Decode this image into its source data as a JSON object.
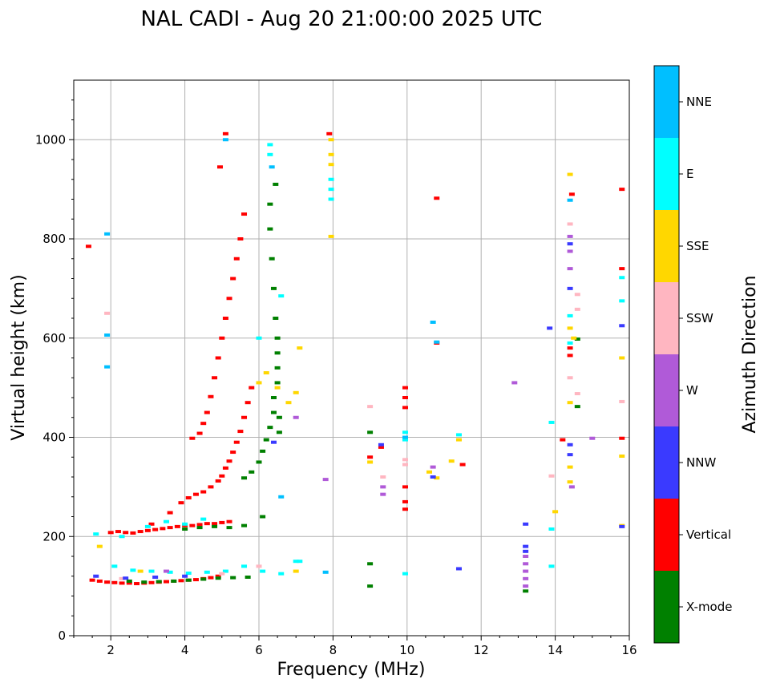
{
  "chart_data": {
    "type": "scatter",
    "title": "NAL CADI - Aug 20 21:00:00 2025 UTC",
    "xlabel": "Frequency (MHz)",
    "ylabel": "Virtual height (km)",
    "xlim": [
      1,
      16
    ],
    "ylim": [
      0,
      1120
    ],
    "xticks": [
      2,
      4,
      6,
      8,
      10,
      12,
      14,
      16
    ],
    "yticks": [
      0,
      200,
      400,
      600,
      800,
      1000
    ],
    "grid": true,
    "colorbar": {
      "label": "Azimuth Direction",
      "categories": [
        {
          "name": "X-mode",
          "color": "#008000"
        },
        {
          "name": "Vertical",
          "color": "#ff0000"
        },
        {
          "name": "NNW",
          "color": "#3a3aff"
        },
        {
          "name": "W",
          "color": "#b05ad8"
        },
        {
          "name": "SSW",
          "color": "#ffb6c1"
        },
        {
          "name": "SSE",
          "color": "#ffd700"
        },
        {
          "name": "E",
          "color": "#00ffff"
        },
        {
          "name": "NNE",
          "color": "#00bfff"
        }
      ]
    },
    "series": [
      {
        "name": "Vertical",
        "points": [
          [
            1.5,
            112
          ],
          [
            1.7,
            110
          ],
          [
            1.9,
            108
          ],
          [
            2.1,
            107
          ],
          [
            2.3,
            106
          ],
          [
            2.5,
            106
          ],
          [
            2.7,
            105
          ],
          [
            2.9,
            106
          ],
          [
            3.1,
            107
          ],
          [
            3.3,
            108
          ],
          [
            3.5,
            109
          ],
          [
            3.7,
            110
          ],
          [
            3.9,
            111
          ],
          [
            4.1,
            112
          ],
          [
            4.3,
            113
          ],
          [
            4.5,
            115
          ],
          [
            4.7,
            117
          ],
          [
            4.9,
            120
          ],
          [
            2.0,
            208
          ],
          [
            2.2,
            210
          ],
          [
            2.4,
            208
          ],
          [
            2.6,
            207
          ],
          [
            2.8,
            210
          ],
          [
            3.0,
            212
          ],
          [
            3.2,
            214
          ],
          [
            3.4,
            216
          ],
          [
            3.6,
            218
          ],
          [
            3.8,
            220
          ],
          [
            4.0,
            222
          ],
          [
            4.2,
            222
          ],
          [
            4.4,
            224
          ],
          [
            4.6,
            226
          ],
          [
            4.8,
            226
          ],
          [
            5.0,
            228
          ],
          [
            5.2,
            230
          ],
          [
            3.1,
            225
          ],
          [
            3.6,
            248
          ],
          [
            3.9,
            268
          ],
          [
            4.1,
            278
          ],
          [
            4.3,
            285
          ],
          [
            4.5,
            290
          ],
          [
            4.7,
            300
          ],
          [
            4.9,
            312
          ],
          [
            5.0,
            322
          ],
          [
            5.1,
            338
          ],
          [
            5.2,
            352
          ],
          [
            5.3,
            370
          ],
          [
            5.4,
            390
          ],
          [
            5.5,
            412
          ],
          [
            5.6,
            440
          ],
          [
            5.7,
            470
          ],
          [
            5.8,
            500
          ],
          [
            4.2,
            398
          ],
          [
            4.4,
            408
          ],
          [
            4.5,
            428
          ],
          [
            4.6,
            450
          ],
          [
            4.7,
            482
          ],
          [
            4.8,
            520
          ],
          [
            4.9,
            560
          ],
          [
            5.0,
            600
          ],
          [
            5.1,
            640
          ],
          [
            5.2,
            680
          ],
          [
            5.3,
            720
          ],
          [
            5.4,
            760
          ],
          [
            5.5,
            800
          ],
          [
            5.6,
            850
          ],
          [
            4.95,
            945
          ],
          [
            5.1,
            1012
          ],
          [
            1.4,
            785
          ],
          [
            9.0,
            360
          ],
          [
            9.3,
            380
          ],
          [
            9.95,
            500
          ],
          [
            9.95,
            480
          ],
          [
            9.95,
            460
          ],
          [
            9.95,
            300
          ],
          [
            9.95,
            270
          ],
          [
            9.95,
            255
          ],
          [
            10.8,
            882
          ],
          [
            10.8,
            590
          ],
          [
            11.5,
            345
          ],
          [
            14.2,
            395
          ],
          [
            14.45,
            890
          ],
          [
            14.4,
            580
          ],
          [
            14.4,
            565
          ],
          [
            15.8,
            900
          ],
          [
            15.8,
            740
          ],
          [
            15.8,
            398
          ],
          [
            7.9,
            1012
          ]
        ]
      },
      {
        "name": "X-mode",
        "points": [
          [
            2.5,
            110
          ],
          [
            2.9,
            108
          ],
          [
            3.3,
            109
          ],
          [
            3.7,
            110
          ],
          [
            4.1,
            112
          ],
          [
            4.5,
            114
          ],
          [
            4.9,
            116
          ],
          [
            5.3,
            117
          ],
          [
            5.7,
            118
          ],
          [
            4.0,
            215
          ],
          [
            4.4,
            218
          ],
          [
            4.8,
            220
          ],
          [
            5.2,
            218
          ],
          [
            5.6,
            222
          ],
          [
            5.6,
            318
          ],
          [
            5.8,
            330
          ],
          [
            6.0,
            350
          ],
          [
            6.1,
            372
          ],
          [
            6.2,
            395
          ],
          [
            6.3,
            420
          ],
          [
            6.4,
            450
          ],
          [
            6.4,
            480
          ],
          [
            6.5,
            510
          ],
          [
            6.5,
            540
          ],
          [
            6.5,
            570
          ],
          [
            6.5,
            600
          ],
          [
            6.45,
            640
          ],
          [
            6.4,
            700
          ],
          [
            6.35,
            760
          ],
          [
            6.3,
            820
          ],
          [
            6.3,
            870
          ],
          [
            6.45,
            910
          ],
          [
            6.1,
            240
          ],
          [
            6.55,
            410
          ],
          [
            6.55,
            440
          ],
          [
            9.0,
            410
          ],
          [
            9.0,
            145
          ],
          [
            9.0,
            100
          ],
          [
            14.6,
            462
          ],
          [
            14.6,
            598
          ],
          [
            13.2,
            90
          ]
        ]
      },
      {
        "name": "E",
        "points": [
          [
            1.6,
            205
          ],
          [
            2.1,
            140
          ],
          [
            2.6,
            132
          ],
          [
            3.1,
            130
          ],
          [
            3.6,
            128
          ],
          [
            4.1,
            126
          ],
          [
            4.6,
            128
          ],
          [
            5.1,
            130
          ],
          [
            5.6,
            140
          ],
          [
            6.1,
            130
          ],
          [
            6.6,
            125
          ],
          [
            7.0,
            150
          ],
          [
            3.0,
            220
          ],
          [
            3.5,
            230
          ],
          [
            4.0,
            225
          ],
          [
            4.5,
            235
          ],
          [
            6.3,
            990
          ],
          [
            6.3,
            970
          ],
          [
            6.6,
            685
          ],
          [
            6.0,
            600
          ],
          [
            7.95,
            920
          ],
          [
            7.95,
            900
          ],
          [
            7.95,
            880
          ],
          [
            9.95,
            410
          ],
          [
            9.95,
            395
          ],
          [
            9.95,
            125
          ],
          [
            11.4,
            405
          ],
          [
            14.4,
            645
          ],
          [
            14.4,
            590
          ],
          [
            13.9,
            430
          ],
          [
            13.9,
            215
          ],
          [
            13.9,
            140
          ],
          [
            15.8,
            722
          ],
          [
            15.8,
            675
          ],
          [
            7.1,
            150
          ],
          [
            2.3,
            200
          ]
        ]
      },
      {
        "name": "NNE",
        "points": [
          [
            1.9,
            810
          ],
          [
            1.9,
            606
          ],
          [
            1.9,
            542
          ],
          [
            5.1,
            1000
          ],
          [
            6.35,
            945
          ],
          [
            7.8,
            128
          ],
          [
            9.95,
            400
          ],
          [
            10.7,
            632
          ],
          [
            10.8,
            592
          ],
          [
            14.4,
            878
          ],
          [
            6.6,
            280
          ]
        ]
      },
      {
        "name": "SSE",
        "points": [
          [
            6.0,
            510
          ],
          [
            6.2,
            530
          ],
          [
            6.5,
            500
          ],
          [
            6.8,
            470
          ],
          [
            7.0,
            490
          ],
          [
            7.1,
            580
          ],
          [
            7.95,
            1000
          ],
          [
            7.95,
            970
          ],
          [
            7.95,
            950
          ],
          [
            7.95,
            805
          ],
          [
            9.0,
            350
          ],
          [
            10.6,
            330
          ],
          [
            10.8,
            318
          ],
          [
            11.2,
            352
          ],
          [
            11.4,
            395
          ],
          [
            14.4,
            930
          ],
          [
            14.4,
            620
          ],
          [
            14.5,
            600
          ],
          [
            14.4,
            470
          ],
          [
            14.4,
            340
          ],
          [
            14.4,
            310
          ],
          [
            14.0,
            250
          ],
          [
            15.8,
            560
          ],
          [
            15.8,
            362
          ],
          [
            15.8,
            222
          ],
          [
            1.7,
            180
          ],
          [
            2.8,
            130
          ],
          [
            7.0,
            130
          ]
        ]
      },
      {
        "name": "SSW",
        "points": [
          [
            9.0,
            462
          ],
          [
            9.95,
            355
          ],
          [
            9.95,
            345
          ],
          [
            9.35,
            320
          ],
          [
            14.6,
            658
          ],
          [
            14.6,
            688
          ],
          [
            14.6,
            488
          ],
          [
            14.4,
            520
          ],
          [
            14.4,
            830
          ],
          [
            13.9,
            322
          ],
          [
            15.8,
            472
          ],
          [
            2.3,
            115
          ],
          [
            5.0,
            125
          ],
          [
            6.0,
            140
          ],
          [
            1.9,
            650
          ]
        ]
      },
      {
        "name": "W",
        "points": [
          [
            7.8,
            315
          ],
          [
            9.35,
            300
          ],
          [
            9.35,
            285
          ],
          [
            10.7,
            340
          ],
          [
            12.9,
            510
          ],
          [
            13.2,
            160
          ],
          [
            13.2,
            145
          ],
          [
            13.2,
            130
          ],
          [
            13.2,
            115
          ],
          [
            13.2,
            100
          ],
          [
            14.45,
            300
          ],
          [
            14.4,
            805
          ],
          [
            14.4,
            775
          ],
          [
            14.4,
            740
          ],
          [
            15.0,
            398
          ],
          [
            7.0,
            440
          ],
          [
            3.5,
            130
          ]
        ]
      },
      {
        "name": "NNW",
        "points": [
          [
            1.6,
            120
          ],
          [
            2.4,
            116
          ],
          [
            3.2,
            118
          ],
          [
            4.0,
            120
          ],
          [
            13.2,
            225
          ],
          [
            13.2,
            180
          ],
          [
            13.2,
            170
          ],
          [
            11.4,
            135
          ],
          [
            14.4,
            385
          ],
          [
            14.4,
            365
          ],
          [
            14.4,
            700
          ],
          [
            14.4,
            790
          ],
          [
            13.85,
            620
          ],
          [
            15.8,
            625
          ],
          [
            15.8,
            220
          ],
          [
            10.7,
            320
          ],
          [
            6.4,
            390
          ],
          [
            9.3,
            385
          ]
        ]
      }
    ]
  }
}
